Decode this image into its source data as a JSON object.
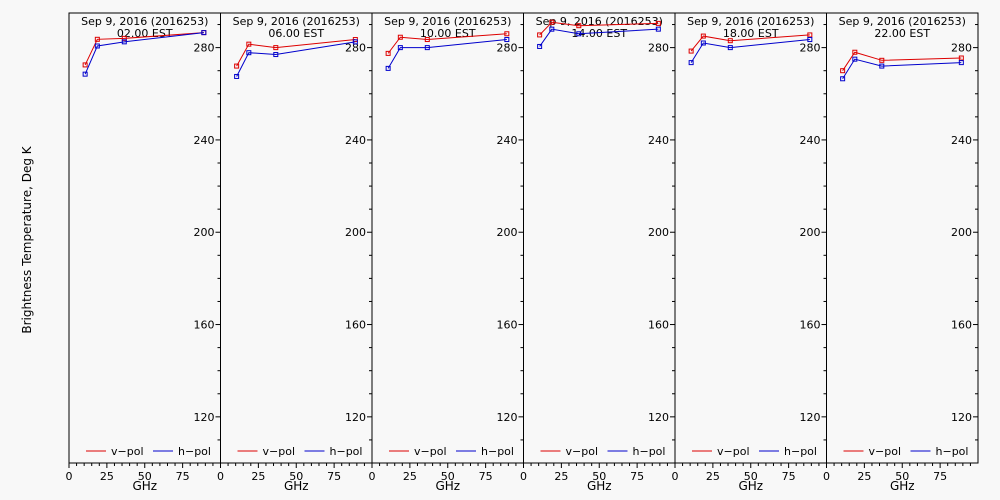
{
  "figure": {
    "ylabel": "Brightness Temperature, Deg K",
    "xlabel": "GHz",
    "legend": {
      "v": "v−pol",
      "h": "h−pol"
    },
    "colors": {
      "v": "#dd0000",
      "h": "#0000cc",
      "axis": "#000000",
      "background": "#f8f8f8"
    }
  },
  "chart_data": [
    {
      "type": "line",
      "title": "Sep  9, 2016 (2016253)",
      "subtitle": "02.00 EST",
      "x": [
        10.65,
        18.7,
        36.5,
        89.0
      ],
      "series": [
        {
          "name": "v−pol",
          "values": [
            272.5,
            283.6,
            284.0,
            286.5
          ]
        },
        {
          "name": "h−pol",
          "values": [
            268.5,
            280.7,
            282.5,
            286.5
          ]
        }
      ],
      "xlim": [
        0,
        100
      ],
      "ylim": [
        100,
        295
      ],
      "xticks": [
        0,
        25,
        50,
        75
      ],
      "yticks": [
        120,
        160,
        200,
        240,
        280
      ],
      "xlabel": "GHz",
      "legend": "bottom"
    },
    {
      "type": "line",
      "title": "Sep  9, 2016 (2016253)",
      "subtitle": "06.00 EST",
      "x": [
        10.65,
        18.7,
        36.5,
        89.0
      ],
      "series": [
        {
          "name": "v−pol",
          "values": [
            272.0,
            281.5,
            280.0,
            283.5
          ]
        },
        {
          "name": "h−pol",
          "values": [
            267.5,
            277.8,
            277.0,
            282.5
          ]
        }
      ],
      "xlim": [
        0,
        100
      ],
      "ylim": [
        100,
        295
      ],
      "xticks": [
        0,
        25,
        50,
        75
      ],
      "yticks": [
        120,
        160,
        200,
        240,
        280
      ],
      "xlabel": "GHz",
      "legend": "bottom"
    },
    {
      "type": "line",
      "title": "Sep  9, 2016 (2016253)",
      "subtitle": "10.00 EST",
      "x": [
        10.65,
        18.7,
        36.5,
        89.0
      ],
      "series": [
        {
          "name": "v−pol",
          "values": [
            277.5,
            284.5,
            283.5,
            286.0
          ]
        },
        {
          "name": "h−pol",
          "values": [
            271.0,
            280.0,
            280.0,
            283.5
          ]
        }
      ],
      "xlim": [
        0,
        100
      ],
      "ylim": [
        100,
        295
      ],
      "xticks": [
        0,
        25,
        50,
        75
      ],
      "yticks": [
        120,
        160,
        200,
        240,
        280
      ],
      "xlabel": "GHz",
      "legend": "bottom"
    },
    {
      "type": "line",
      "title": "Sep  9, 2016 (2016253)",
      "subtitle": "14.00 EST",
      "x": [
        10.65,
        18.7,
        36.5,
        89.0
      ],
      "series": [
        {
          "name": "v−pol",
          "values": [
            285.5,
            291.0,
            289.5,
            290.5
          ]
        },
        {
          "name": "h−pol",
          "values": [
            280.5,
            288.0,
            286.0,
            288.0
          ]
        }
      ],
      "xlim": [
        0,
        100
      ],
      "ylim": [
        100,
        295
      ],
      "xticks": [
        0,
        25,
        50,
        75
      ],
      "yticks": [
        120,
        160,
        200,
        240,
        280
      ],
      "xlabel": "GHz",
      "legend": "bottom"
    },
    {
      "type": "line",
      "title": "Sep  9, 2016 (2016253)",
      "subtitle": "18.00 EST",
      "x": [
        10.65,
        18.7,
        36.5,
        89.0
      ],
      "series": [
        {
          "name": "v−pol",
          "values": [
            278.5,
            285.0,
            283.0,
            285.5
          ]
        },
        {
          "name": "h−pol",
          "values": [
            273.5,
            282.0,
            280.0,
            283.5
          ]
        }
      ],
      "xlim": [
        0,
        100
      ],
      "ylim": [
        100,
        295
      ],
      "xticks": [
        0,
        25,
        50,
        75
      ],
      "yticks": [
        120,
        160,
        200,
        240,
        280
      ],
      "xlabel": "GHz",
      "legend": "bottom"
    },
    {
      "type": "line",
      "title": "Sep  9, 2016 (2016253)",
      "subtitle": "22.00 EST",
      "x": [
        10.65,
        18.7,
        36.5,
        89.0
      ],
      "series": [
        {
          "name": "v−pol",
          "values": [
            270.0,
            278.0,
            274.5,
            275.5
          ]
        },
        {
          "name": "h−pol",
          "values": [
            266.5,
            275.0,
            272.0,
            273.5
          ]
        }
      ],
      "xlim": [
        0,
        100
      ],
      "ylim": [
        100,
        295
      ],
      "xticks": [
        0,
        25,
        50,
        75
      ],
      "yticks": [
        120,
        160,
        200,
        240,
        280
      ],
      "xlabel": "GHz",
      "legend": "bottom"
    }
  ]
}
